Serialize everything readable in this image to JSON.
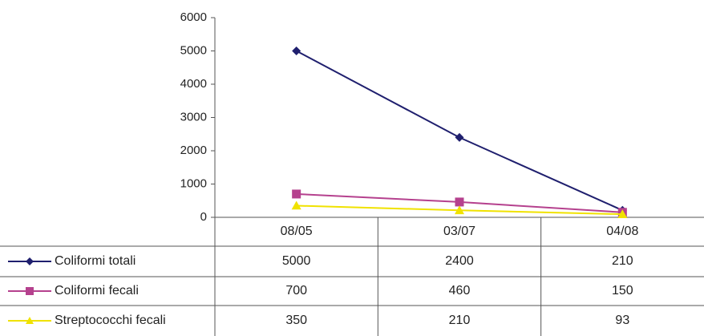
{
  "chart_data": {
    "type": "line",
    "categories": [
      "08/05",
      "03/07",
      "04/08"
    ],
    "ylim": [
      0,
      6000
    ],
    "yticks": [
      0,
      1000,
      2000,
      3000,
      4000,
      5000,
      6000
    ],
    "grid": false,
    "legend": "data-table",
    "series": [
      {
        "name": "Coliformi totali",
        "values": [
          5000,
          2400,
          210
        ],
        "color": "#1f1f6e",
        "marker": "diamond"
      },
      {
        "name": "Coliformi fecali",
        "values": [
          700,
          460,
          150
        ],
        "color": "#b5418e",
        "marker": "square"
      },
      {
        "name": "Streptococchi fecali",
        "values": [
          350,
          210,
          93
        ],
        "color": "#f0e200",
        "marker": "triangle"
      }
    ]
  }
}
